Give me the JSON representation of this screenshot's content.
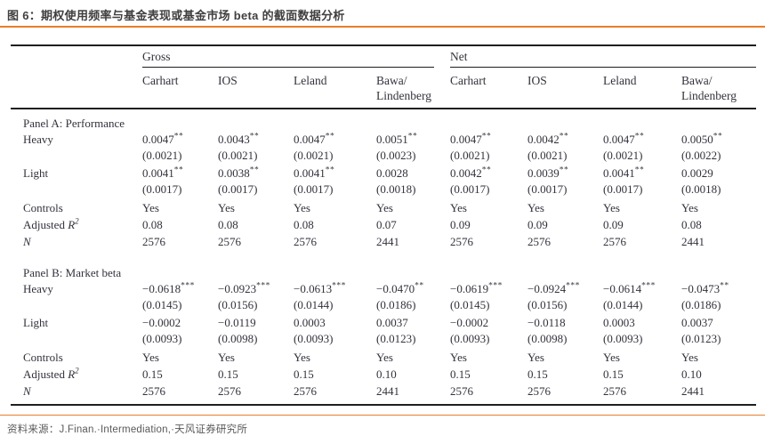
{
  "figure": {
    "title": "图 6：期权使用频率与基金表现或基金市场 beta 的截面数据分析"
  },
  "source": {
    "label": "资料来源：",
    "text": "J.Finan.·Intermediation,·天风证券研究所"
  },
  "colors": {
    "accent_orange": "#E87E2B",
    "table_line": "#1F1F1F",
    "table_text": "#32323C",
    "title_text": "#3F3F3F",
    "source_text": "#595959"
  },
  "table": {
    "group_headers": [
      {
        "label": "Gross",
        "span": 4
      },
      {
        "label": "Net",
        "span": 4
      }
    ],
    "column_headers": [
      "Carhart",
      "IOS",
      "Leland",
      "Bawa/\nLindenberg",
      "Carhart",
      "IOS",
      "Leland",
      "Bawa/\nLindenberg"
    ],
    "panels": [
      {
        "title": "Panel A: Performance",
        "rows": [
          {
            "label": "Heavy",
            "values": [
              "0.0047**",
              "0.0043**",
              "0.0047**",
              "0.0051**",
              "0.0047**",
              "0.0042**",
              "0.0047**",
              "0.0050**"
            ],
            "se": [
              "(0.0021)",
              "(0.0021)",
              "(0.0021)",
              "(0.0023)",
              "(0.0021)",
              "(0.0021)",
              "(0.0021)",
              "(0.0022)"
            ]
          },
          {
            "label": "Light",
            "values": [
              "0.0041**",
              "0.0038**",
              "0.0041**",
              "0.0028",
              "0.0042**",
              "0.0039**",
              "0.0041**",
              "0.0029"
            ],
            "se": [
              "(0.0017)",
              "(0.0017)",
              "(0.0017)",
              "(0.0018)",
              "(0.0017)",
              "(0.0017)",
              "(0.0017)",
              "(0.0018)"
            ]
          },
          {
            "label": "Controls",
            "values": [
              "Yes",
              "Yes",
              "Yes",
              "Yes",
              "Yes",
              "Yes",
              "Yes",
              "Yes"
            ]
          },
          {
            "label": "Adjusted R2",
            "label_parts": [
              {
                "text": "Adjusted "
              },
              {
                "text": "R",
                "italic": true
              },
              {
                "text": "2",
                "sup": true,
                "italic": true
              }
            ],
            "values": [
              "0.08",
              "0.08",
              "0.08",
              "0.07",
              "0.09",
              "0.09",
              "0.09",
              "0.08"
            ]
          },
          {
            "label": "N",
            "label_parts": [
              {
                "text": "N",
                "italic": true
              }
            ],
            "values": [
              "2576",
              "2576",
              "2576",
              "2441",
              "2576",
              "2576",
              "2576",
              "2441"
            ]
          }
        ]
      },
      {
        "title": "Panel B: Market beta",
        "rows": [
          {
            "label": "Heavy",
            "values": [
              "−0.0618***",
              "−0.0923***",
              "−0.0613***",
              "−0.0470**",
              "−0.0619***",
              "−0.0924***",
              "−0.0614***",
              "−0.0473**"
            ],
            "se": [
              "(0.0145)",
              "(0.0156)",
              "(0.0144)",
              "(0.0186)",
              "(0.0145)",
              "(0.0156)",
              "(0.0144)",
              "(0.0186)"
            ]
          },
          {
            "label": "Light",
            "values": [
              "−0.0002",
              "−0.0119",
              "0.0003",
              "0.0037",
              "−0.0002",
              "−0.0118",
              "0.0003",
              "0.0037"
            ],
            "se": [
              "(0.0093)",
              "(0.0098)",
              "(0.0093)",
              "(0.0123)",
              "(0.0093)",
              "(0.0098)",
              "(0.0093)",
              "(0.0123)"
            ]
          },
          {
            "label": "Controls",
            "values": [
              "Yes",
              "Yes",
              "Yes",
              "Yes",
              "Yes",
              "Yes",
              "Yes",
              "Yes"
            ]
          },
          {
            "label": "Adjusted R2",
            "label_parts": [
              {
                "text": "Adjusted "
              },
              {
                "text": "R",
                "italic": true
              },
              {
                "text": "2",
                "sup": true,
                "italic": true
              }
            ],
            "values": [
              "0.15",
              "0.15",
              "0.15",
              "0.10",
              "0.15",
              "0.15",
              "0.15",
              "0.10"
            ]
          },
          {
            "label": "N",
            "label_parts": [
              {
                "text": "N",
                "italic": true
              }
            ],
            "values": [
              "2576",
              "2576",
              "2576",
              "2441",
              "2576",
              "2576",
              "2576",
              "2441"
            ]
          }
        ]
      }
    ]
  }
}
